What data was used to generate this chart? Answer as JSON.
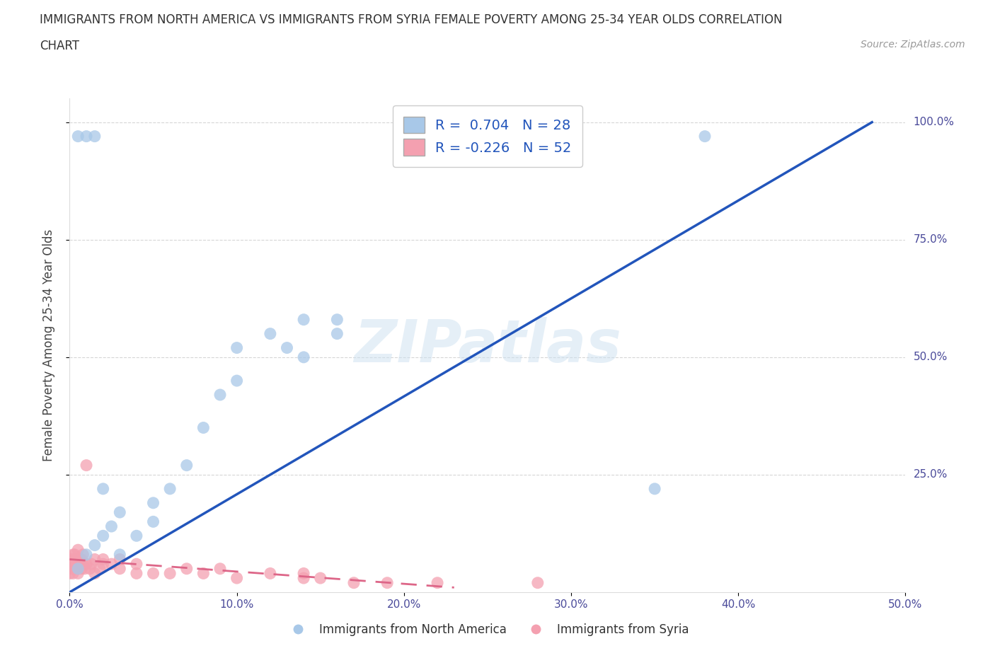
{
  "title_line1": "IMMIGRANTS FROM NORTH AMERICA VS IMMIGRANTS FROM SYRIA FEMALE POVERTY AMONG 25-34 YEAR OLDS CORRELATION",
  "title_line2": "CHART",
  "source": "Source: ZipAtlas.com",
  "ylabel_label": "Female Poverty Among 25-34 Year Olds",
  "xlim": [
    0.0,
    0.5
  ],
  "ylim": [
    0.0,
    1.05
  ],
  "xtick_vals": [
    0.0,
    0.1,
    0.2,
    0.3,
    0.4,
    0.5
  ],
  "xtick_labels": [
    "0.0%",
    "10.0%",
    "20.0%",
    "30.0%",
    "40.0%",
    "50.0%"
  ],
  "ytick_vals": [
    0.25,
    0.5,
    0.75,
    1.0
  ],
  "ytick_labels": [
    "25.0%",
    "50.0%",
    "75.0%",
    "100.0%"
  ],
  "watermark": "ZIPatlas",
  "blue_R": 0.704,
  "blue_N": 28,
  "pink_R": -0.226,
  "pink_N": 52,
  "blue_color": "#a8c8e8",
  "pink_color": "#f4a0b0",
  "blue_line_color": "#2255bb",
  "pink_line_color": "#dd6688",
  "legend_blue_label": "Immigrants from North America",
  "legend_pink_label": "Immigrants from Syria",
  "blue_points_x": [
    0.005,
    0.01,
    0.015,
    0.02,
    0.025,
    0.03,
    0.03,
    0.04,
    0.05,
    0.05,
    0.06,
    0.07,
    0.08,
    0.09,
    0.1,
    0.1,
    0.12,
    0.13,
    0.14,
    0.14,
    0.16,
    0.16,
    0.005,
    0.01,
    0.015,
    0.02,
    0.35,
    0.38
  ],
  "blue_points_y": [
    0.05,
    0.08,
    0.1,
    0.12,
    0.14,
    0.17,
    0.08,
    0.12,
    0.15,
    0.19,
    0.22,
    0.27,
    0.35,
    0.42,
    0.45,
    0.52,
    0.55,
    0.52,
    0.5,
    0.58,
    0.55,
    0.58,
    0.97,
    0.97,
    0.97,
    0.22,
    0.22,
    0.97
  ],
  "pink_points_x": [
    0.0,
    0.0,
    0.001,
    0.001,
    0.002,
    0.002,
    0.002,
    0.003,
    0.003,
    0.003,
    0.003,
    0.004,
    0.004,
    0.005,
    0.005,
    0.005,
    0.005,
    0.006,
    0.006,
    0.007,
    0.007,
    0.008,
    0.008,
    0.009,
    0.01,
    0.01,
    0.012,
    0.013,
    0.015,
    0.015,
    0.018,
    0.02,
    0.02,
    0.025,
    0.03,
    0.03,
    0.04,
    0.04,
    0.05,
    0.06,
    0.07,
    0.08,
    0.09,
    0.1,
    0.12,
    0.14,
    0.15,
    0.17,
    0.19,
    0.22,
    0.28,
    0.14
  ],
  "pink_points_y": [
    0.04,
    0.06,
    0.05,
    0.07,
    0.04,
    0.06,
    0.08,
    0.05,
    0.06,
    0.07,
    0.08,
    0.06,
    0.07,
    0.04,
    0.05,
    0.06,
    0.09,
    0.06,
    0.07,
    0.05,
    0.07,
    0.06,
    0.08,
    0.05,
    0.06,
    0.27,
    0.05,
    0.06,
    0.04,
    0.07,
    0.05,
    0.06,
    0.07,
    0.06,
    0.05,
    0.07,
    0.04,
    0.06,
    0.04,
    0.04,
    0.05,
    0.04,
    0.05,
    0.03,
    0.04,
    0.03,
    0.03,
    0.02,
    0.02,
    0.02,
    0.02,
    0.04
  ],
  "blue_line_x": [
    0.0,
    0.48
  ],
  "blue_line_y": [
    0.0,
    1.0
  ],
  "pink_line_x": [
    0.0,
    0.23
  ],
  "pink_line_y": [
    0.07,
    0.01
  ]
}
